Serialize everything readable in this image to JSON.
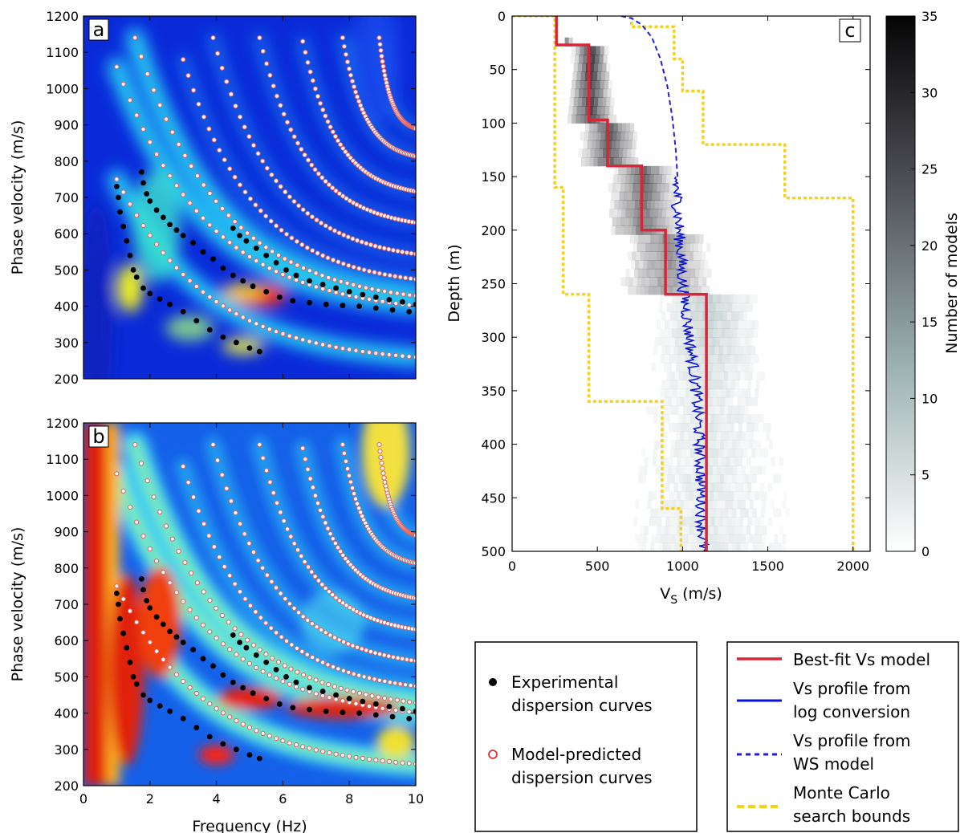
{
  "chart_data": [
    {
      "panel": "a",
      "type": "scatter",
      "background": "dispersion-spectrum-heatmap",
      "colormap": "jet",
      "xlabel": "",
      "ylabel": "Phase velocity (m/s)",
      "xlim": [
        0,
        10
      ],
      "ylim": [
        200,
        1200
      ],
      "xticks": [
        "0",
        "2",
        "4",
        "6",
        "8",
        "10"
      ],
      "yticks": [
        "200",
        "300",
        "400",
        "500",
        "600",
        "700",
        "800",
        "900",
        "1000",
        "1100",
        "1200"
      ],
      "series": [
        {
          "name": "Experimental dispersion curves",
          "marker": "black-dot",
          "points": [
            [
              1.0,
              730
            ],
            [
              1.05,
              700
            ],
            [
              1.1,
              660
            ],
            [
              1.2,
              620
            ],
            [
              1.3,
              580
            ],
            [
              1.4,
              540
            ],
            [
              1.5,
              500
            ],
            [
              1.6,
              480
            ],
            [
              1.8,
              450
            ],
            [
              2.0,
              435
            ],
            [
              2.3,
              420
            ],
            [
              2.6,
              405
            ],
            [
              3.0,
              385
            ],
            [
              3.4,
              360
            ],
            [
              3.8,
              335
            ],
            [
              4.2,
              315
            ],
            [
              4.6,
              300
            ],
            [
              5.0,
              285
            ],
            [
              5.3,
              275
            ],
            [
              1.75,
              770
            ],
            [
              1.8,
              740
            ],
            [
              1.9,
              710
            ],
            [
              2.0,
              690
            ],
            [
              2.2,
              665
            ],
            [
              2.4,
              645
            ],
            [
              2.6,
              625
            ],
            [
              2.8,
              610
            ],
            [
              3.0,
              595
            ],
            [
              3.3,
              575
            ],
            [
              3.6,
              550
            ],
            [
              3.9,
              530
            ],
            [
              4.2,
              505
            ],
            [
              4.5,
              485
            ],
            [
              4.8,
              470
            ],
            [
              5.1,
              455
            ],
            [
              5.5,
              440
            ],
            [
              5.9,
              425
            ],
            [
              6.3,
              415
            ],
            [
              6.8,
              410
            ],
            [
              7.3,
              405
            ],
            [
              7.8,
              402
            ],
            [
              8.3,
              400
            ],
            [
              8.8,
              395
            ],
            [
              9.3,
              390
            ],
            [
              9.8,
              385
            ],
            [
              4.5,
              615
            ],
            [
              4.7,
              595
            ],
            [
              4.9,
              580
            ],
            [
              5.2,
              560
            ],
            [
              5.5,
              540
            ],
            [
              5.8,
              520
            ],
            [
              6.1,
              500
            ],
            [
              6.4,
              485
            ],
            [
              6.8,
              470
            ],
            [
              7.2,
              460
            ],
            [
              7.6,
              450
            ],
            [
              8.0,
              440
            ],
            [
              8.4,
              432
            ],
            [
              8.8,
              425
            ],
            [
              9.2,
              418
            ],
            [
              9.6,
              412
            ],
            [
              10.0,
              405
            ]
          ]
        },
        {
          "name": "Model-predicted dispersion curves",
          "marker": "hollow-circle",
          "curves": [
            {
              "f0": 1.0,
              "v0": 750,
              "f1": 10,
              "v1": 240
            },
            {
              "f0": 1.0,
              "v0": 1060,
              "f1": 10,
              "v1": 375
            },
            {
              "f0": 1.55,
              "v0": 1140,
              "f1": 10,
              "v1": 400
            },
            {
              "f0": 3.0,
              "v0": 1080,
              "f1": 10,
              "v1": 450
            },
            {
              "f0": 3.9,
              "v0": 1140,
              "f1": 10,
              "v1": 520
            },
            {
              "f0": 5.3,
              "v0": 1140,
              "f1": 10,
              "v1": 610
            },
            {
              "f0": 6.6,
              "v0": 1130,
              "f1": 10,
              "v1": 700
            },
            {
              "f0": 7.8,
              "v0": 1140,
              "f1": 10,
              "v1": 800
            },
            {
              "f0": 8.9,
              "v0": 1140,
              "f1": 10,
              "v1": 880
            }
          ]
        }
      ]
    },
    {
      "panel": "b",
      "type": "scatter",
      "background": "normalized-dispersion-spectrum-heatmap",
      "colormap": "jet",
      "xlabel": "Frequency (Hz)",
      "ylabel": "Phase velocity (m/s)",
      "xlim": [
        0,
        10
      ],
      "ylim": [
        200,
        1200
      ],
      "xticks": [
        "0",
        "2",
        "4",
        "6",
        "8",
        "10"
      ],
      "yticks": [
        "200",
        "300",
        "400",
        "500",
        "600",
        "700",
        "800",
        "900",
        "1000",
        "1100",
        "1200"
      ],
      "series": [
        {
          "name": "Experimental dispersion curves",
          "marker": "black-dot",
          "same_as_panel": "a"
        },
        {
          "name": "Model-predicted dispersion curves",
          "marker": "hollow-circle",
          "same_as_panel": "a"
        }
      ]
    },
    {
      "panel": "c",
      "type": "line",
      "background": "model-density-heatmap",
      "xlabel": "V",
      "xlabel_sub": "S",
      "xlabel_unit": " (m/s)",
      "ylabel": "Depth (m)",
      "xlim": [
        0,
        2100
      ],
      "ylim": [
        500,
        0
      ],
      "xticks": [
        "0",
        "500",
        "1000",
        "1500",
        "2000"
      ],
      "yticks": [
        "0",
        "50",
        "100",
        "150",
        "200",
        "250",
        "300",
        "350",
        "400",
        "450",
        "500"
      ],
      "colorbar": {
        "label": "Number of models",
        "min": 0,
        "max": 35,
        "ticks": [
          "0",
          "5",
          "10",
          "15",
          "20",
          "25",
          "30",
          "35"
        ]
      },
      "series": [
        {
          "name": "Best-fit Vs model",
          "color": "#d62738",
          "style": "solid",
          "steps": [
            [
              260,
              0
            ],
            [
              260,
              27
            ],
            [
              450,
              27
            ],
            [
              450,
              97
            ],
            [
              560,
              97
            ],
            [
              560,
              140
            ],
            [
              760,
              140
            ],
            [
              760,
              200
            ],
            [
              900,
              200
            ],
            [
              900,
              260
            ],
            [
              1140,
              260
            ],
            [
              1140,
              500
            ]
          ]
        },
        {
          "name": "Vs profile from WS model",
          "color": "#1f1fe0",
          "style": "dashed",
          "points": [
            [
              640,
              0
            ],
            [
              700,
              2
            ],
            [
              760,
              8
            ],
            [
              820,
              20
            ],
            [
              870,
              40
            ],
            [
              910,
              65
            ],
            [
              940,
              95
            ],
            [
              960,
              125
            ],
            [
              970,
              150
            ]
          ]
        },
        {
          "name": "Vs profile from log conversion",
          "color": "#0a14d8",
          "style": "solid",
          "depth_range": [
            150,
            500
          ],
          "trend": [
            [
              960,
              150
            ],
            [
              980,
              200
            ],
            [
              1000,
              250
            ],
            [
              1040,
              300
            ],
            [
              1080,
              350
            ],
            [
              1100,
              400
            ],
            [
              1110,
              450
            ],
            [
              1120,
              500
            ]
          ]
        },
        {
          "name": "Monte Carlo search bounds (lower)",
          "color": "#f5d020",
          "style": "dotted",
          "steps": [
            [
              0,
              0
            ],
            [
              250,
              0
            ],
            [
              250,
              50
            ],
            [
              250,
              160
            ],
            [
              300,
              160
            ],
            [
              300,
              260
            ],
            [
              450,
              260
            ],
            [
              450,
              360
            ],
            [
              880,
              360
            ],
            [
              880,
              460
            ],
            [
              990,
              460
            ],
            [
              990,
              500
            ]
          ]
        },
        {
          "name": "Monte Carlo search bounds (upper)",
          "color": "#f5d020",
          "style": "dotted",
          "steps": [
            [
              700,
              0
            ],
            [
              700,
              10
            ],
            [
              950,
              10
            ],
            [
              950,
              40
            ],
            [
              1000,
              40
            ],
            [
              1000,
              70
            ],
            [
              1120,
              70
            ],
            [
              1120,
              120
            ],
            [
              1600,
              120
            ],
            [
              1600,
              170
            ],
            [
              2000,
              170
            ],
            [
              2000,
              500
            ]
          ]
        }
      ]
    }
  ],
  "legend_left": [
    {
      "marker": "black-dot",
      "line1": "Experimental",
      "line2": "dispersion curves"
    },
    {
      "marker": "hollow-circle",
      "line1": "Model-predicted",
      "line2": "dispersion curves"
    }
  ],
  "legend_right": [
    {
      "style": "solid-red",
      "line1": "Best-fit Vs model",
      "line2": ""
    },
    {
      "style": "solid-blue",
      "line1": "Vs profile from",
      "line2": "log conversion"
    },
    {
      "style": "dashed-blue",
      "line1": "Vs profile from",
      "line2": "WS model"
    },
    {
      "style": "dashed-yellow",
      "line1": "Monte Carlo",
      "line2": "search bounds"
    }
  ],
  "colors": {
    "jet_low": "#0a2ad8",
    "jet_mid": "#28e0f0",
    "jet_high": "#e02010",
    "hollow_marker_edge": "#e03030",
    "best_fit": "#d62738",
    "log_profile": "#0a14d8",
    "bounds": "#f5d020"
  }
}
